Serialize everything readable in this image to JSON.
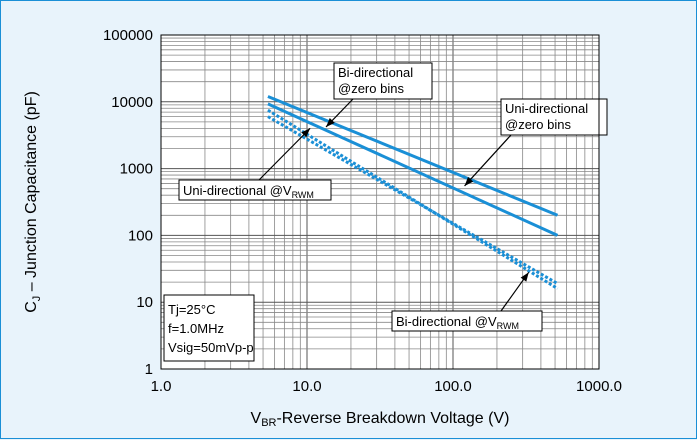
{
  "chart_data": {
    "type": "line",
    "title": "",
    "xlabel_main": "V",
    "xlabel_sub": "BR",
    "xlabel_rest": "-Reverse Breakdown Voltage (V)",
    "ylabel_main": "C",
    "ylabel_sub": "J",
    "ylabel_rest": " – Junction Capacitance (pF)",
    "x_scale": "log",
    "y_scale": "log",
    "xlim": [
      1,
      1000
    ],
    "ylim": [
      1,
      100000
    ],
    "grid": true,
    "x_ticks": [
      {
        "value": 1,
        "label": "1.0"
      },
      {
        "value": 10,
        "label": "10.0"
      },
      {
        "value": 100,
        "label": "100.0"
      },
      {
        "value": 1000,
        "label": "1000.0"
      }
    ],
    "y_ticks": [
      {
        "value": 1,
        "label": "1"
      },
      {
        "value": 10,
        "label": "10"
      },
      {
        "value": 100,
        "label": "100"
      },
      {
        "value": 1000,
        "label": "1000"
      },
      {
        "value": 10000,
        "label": "10000"
      },
      {
        "value": 100000,
        "label": "100000"
      }
    ],
    "series_color": "#1a8fd6",
    "series": [
      {
        "style": "solid",
        "x": [
          5.4,
          520
        ],
        "y": [
          12000,
          200
        ]
      },
      {
        "style": "solid",
        "x": [
          5.4,
          520
        ],
        "y": [
          9300,
          100
        ]
      },
      {
        "style": "dotted",
        "x": [
          5.4,
          520
        ],
        "y": [
          7500,
          16
        ]
      },
      {
        "style": "dotted",
        "x": [
          5.4,
          520
        ],
        "y": [
          6000,
          19
        ]
      }
    ],
    "annotations": [
      {
        "id": "bi-zero",
        "lines": [
          "Bi-directional",
          "@zero bins"
        ],
        "arrow_to": {
          "x": 13.5,
          "y": 4200
        }
      },
      {
        "id": "uni-zero",
        "lines": [
          "Uni-directional",
          "@zero bins"
        ],
        "arrow_to": {
          "x": 120,
          "y": 550
        }
      },
      {
        "id": "uni-vrwm",
        "text": "Uni-directional @V",
        "sub": "RWM",
        "arrow_to": {
          "x": 10.5,
          "y": 4000
        }
      },
      {
        "id": "bi-vrwm",
        "text": "Bi-directional @V",
        "sub": "RWM",
        "arrow_to": {
          "x": 330,
          "y": 28
        }
      }
    ],
    "conditions": [
      "Tj=25°C",
      "f=1.0MHz",
      "Vsig=50mVp-p"
    ]
  }
}
